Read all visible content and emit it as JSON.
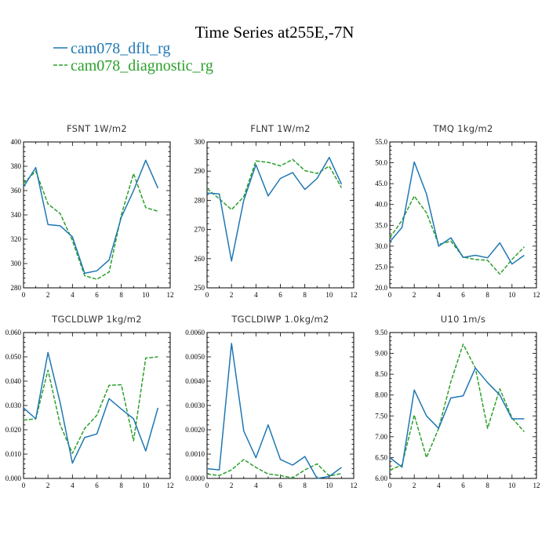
{
  "title": "Time Series at255E,-7N",
  "legend": [
    {
      "name": "cam078_dflt_rg",
      "color": "#1f77b4",
      "dash": ""
    },
    {
      "name": "cam078_diagnostic_rg",
      "color": "#2ca02c",
      "dash": "5,2"
    }
  ],
  "chart_data": [
    {
      "type": "line",
      "title": "FSNT   1W/m2",
      "x": [
        0,
        1,
        2,
        3,
        4,
        5,
        6,
        7,
        8,
        9,
        10,
        11
      ],
      "xlim": [
        0,
        12
      ],
      "ylim": [
        280,
        400
      ],
      "xticks": [
        0,
        2,
        4,
        6,
        8,
        10,
        12
      ],
      "yticks": [
        280,
        300,
        320,
        340,
        360,
        380,
        400
      ],
      "ytick_labels": [
        "280",
        "300",
        "320",
        "340",
        "360",
        "380",
        "400"
      ],
      "series": [
        {
          "name": "cam078_dflt_rg",
          "values": [
            363,
            379,
            332,
            331,
            322,
            292,
            294,
            303,
            338,
            360,
            385,
            362
          ]
        },
        {
          "name": "cam078_diagnostic_rg",
          "values": [
            366,
            376,
            349,
            341,
            319,
            290,
            287,
            293,
            340,
            374,
            346,
            343
          ]
        }
      ]
    },
    {
      "type": "line",
      "title": "FLNT   1W/m2",
      "x": [
        0,
        1,
        2,
        3,
        4,
        5,
        6,
        7,
        8,
        9,
        10,
        11
      ],
      "xlim": [
        0,
        12
      ],
      "ylim": [
        250,
        300
      ],
      "xticks": [
        0,
        2,
        4,
        6,
        8,
        10,
        12
      ],
      "yticks": [
        250,
        260,
        270,
        280,
        290,
        300
      ],
      "ytick_labels": [
        "250",
        "260",
        "270",
        "280",
        "290",
        "300"
      ],
      "series": [
        {
          "name": "cam078_dflt_rg",
          "values": [
            282.5,
            282.2,
            259.2,
            280,
            292.2,
            281.5,
            287.5,
            289.5,
            283.7,
            287.5,
            294.7,
            285.5
          ]
        },
        {
          "name": "cam078_diagnostic_rg",
          "values": [
            284,
            280.5,
            276.8,
            281.2,
            293.5,
            293,
            291.8,
            294,
            290.2,
            289.2,
            291.7,
            284.3
          ]
        }
      ]
    },
    {
      "type": "line",
      "title": "TMQ   1kg/m2",
      "x": [
        0,
        1,
        2,
        3,
        4,
        5,
        6,
        7,
        8,
        9,
        10,
        11
      ],
      "xlim": [
        0,
        12
      ],
      "ylim": [
        20,
        55
      ],
      "xticks": [
        0,
        2,
        4,
        6,
        8,
        10,
        12
      ],
      "yticks": [
        20,
        25,
        30,
        35,
        40,
        45,
        50,
        55
      ],
      "ytick_labels": [
        "20.0",
        "25.0",
        "30.0",
        "35.0",
        "40.0",
        "45.0",
        "50.0",
        "55.0"
      ],
      "series": [
        {
          "name": "cam078_dflt_rg",
          "values": [
            31,
            34.5,
            50.2,
            42.5,
            30,
            32,
            27.3,
            27.8,
            27.2,
            30.8,
            25.7,
            27.8
          ]
        },
        {
          "name": "cam078_diagnostic_rg",
          "values": [
            32,
            36.2,
            42,
            38,
            30.4,
            31.2,
            27.4,
            26.8,
            26.6,
            23.3,
            26.8,
            29.8
          ]
        }
      ]
    },
    {
      "type": "line",
      "title": "TGCLDLWP   1kg/m2",
      "x": [
        0,
        1,
        2,
        3,
        4,
        5,
        6,
        7,
        8,
        9,
        10,
        11
      ],
      "xlim": [
        0,
        12
      ],
      "ylim": [
        0,
        0.06
      ],
      "xticks": [
        0,
        2,
        4,
        6,
        8,
        10,
        12
      ],
      "yticks": [
        0,
        0.01,
        0.02,
        0.03,
        0.04,
        0.05,
        0.06
      ],
      "ytick_labels": [
        "0.000",
        "0.010",
        "0.020",
        "0.030",
        "0.040",
        "0.050",
        "0.060"
      ],
      "series": [
        {
          "name": "cam078_dflt_rg",
          "values": [
            0.029,
            0.0245,
            0.0518,
            0.031,
            0.0063,
            0.0168,
            0.0183,
            0.0328,
            0.0285,
            0.0245,
            0.0113,
            0.029
          ]
        },
        {
          "name": "cam078_diagnostic_rg",
          "values": [
            0.024,
            0.0245,
            0.0445,
            0.022,
            0.0103,
            0.0205,
            0.026,
            0.0383,
            0.0385,
            0.0155,
            0.0495,
            0.05
          ]
        }
      ]
    },
    {
      "type": "line",
      "title": "TGCLDIWP   1.0kg/m2",
      "x": [
        0,
        1,
        2,
        3,
        4,
        5,
        6,
        7,
        8,
        9,
        10,
        11
      ],
      "xlim": [
        0,
        12
      ],
      "ylim": [
        0,
        0.006
      ],
      "xticks": [
        0,
        2,
        4,
        6,
        8,
        10,
        12
      ],
      "yticks": [
        0,
        0.001,
        0.002,
        0.003,
        0.004,
        0.005,
        0.006
      ],
      "ytick_labels": [
        "0.0000",
        "0.0010",
        "0.0020",
        "0.0030",
        "0.0040",
        "0.0050",
        "0.0060"
      ],
      "series": [
        {
          "name": "cam078_dflt_rg",
          "values": [
            0.0004,
            0.00035,
            0.00555,
            0.00195,
            0.00085,
            0.0022,
            0.00078,
            0.00055,
            0.0009,
            0.0,
            8e-05,
            0.00045
          ]
        },
        {
          "name": "cam078_diagnostic_rg",
          "values": [
            0.00018,
            0.00012,
            0.00035,
            0.00078,
            0.00045,
            0.00018,
            0.00012,
            2e-05,
            0.00035,
            0.0006,
            0.0001,
            0.0002
          ]
        }
      ]
    },
    {
      "type": "line",
      "title": "U10   1m/s",
      "x": [
        0,
        1,
        2,
        3,
        4,
        5,
        6,
        7,
        8,
        9,
        10,
        11
      ],
      "xlim": [
        0,
        12
      ],
      "ylim": [
        6,
        9.5
      ],
      "xticks": [
        0,
        2,
        4,
        6,
        8,
        10,
        12
      ],
      "yticks": [
        6,
        6.5,
        7,
        7.5,
        8,
        8.5,
        9,
        9.5
      ],
      "ytick_labels": [
        "6.00",
        "6.50",
        "7.00",
        "7.50",
        "8.00",
        "8.50",
        "9.00",
        "9.50"
      ],
      "series": [
        {
          "name": "cam078_dflt_rg",
          "values": [
            6.5,
            6.27,
            8.12,
            7.5,
            7.2,
            7.93,
            7.98,
            8.65,
            8.3,
            8.0,
            7.43,
            7.43
          ]
        },
        {
          "name": "cam078_diagnostic_rg",
          "values": [
            6.2,
            6.32,
            7.52,
            6.5,
            7.2,
            8.32,
            9.22,
            8.65,
            7.2,
            8.15,
            7.45,
            7.12
          ]
        }
      ]
    }
  ]
}
